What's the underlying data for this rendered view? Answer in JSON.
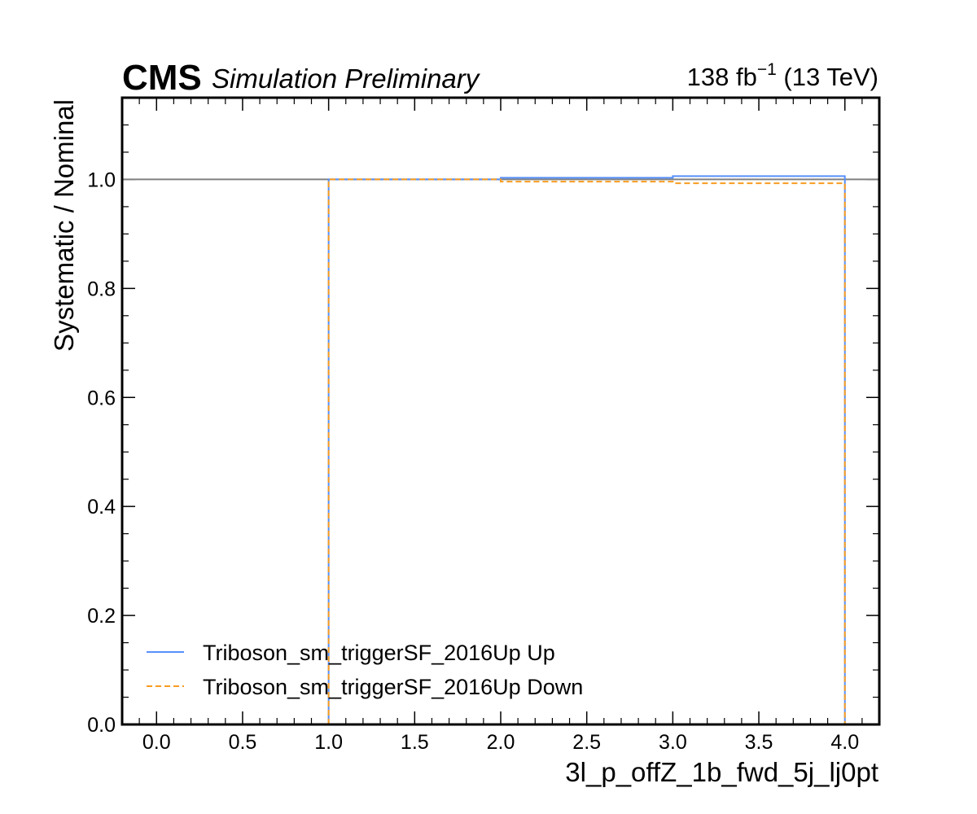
{
  "header": {
    "experiment": "CMS",
    "status": "Simulation Preliminary",
    "lumi_value": "138 fb",
    "lumi_exponent": "−1",
    "energy": " (13 TeV)"
  },
  "chart_data": {
    "type": "line",
    "drawstyle": "steps",
    "title": "",
    "xlabel": "3l_p_offZ_1b_fwd_5j_lj0pt",
    "ylabel": "Systematic / Nominal",
    "xlim": [
      -0.2,
      4.2
    ],
    "ylim": [
      0.0,
      1.15
    ],
    "x_ticks": [
      0.0,
      0.5,
      1.0,
      1.5,
      2.0,
      2.5,
      3.0,
      3.5,
      4.0
    ],
    "x_tick_labels": [
      "0.0",
      "0.5",
      "1.0",
      "1.5",
      "2.0",
      "2.5",
      "3.0",
      "3.5",
      "4.0"
    ],
    "y_ticks": [
      0.0,
      0.2,
      0.4,
      0.6,
      0.8,
      1.0
    ],
    "y_tick_labels": [
      "0.0",
      "0.2",
      "0.4",
      "0.6",
      "0.8",
      "1.0"
    ],
    "reference_line": 1.0,
    "legend_position": "lower-left",
    "bin_edges": [
      1.0,
      2.0,
      3.0,
      4.0
    ],
    "series": [
      {
        "name": "Triboson_sm_triggerSF_2016Up Up",
        "values": [
          1.0,
          1.003,
          1.006
        ],
        "color": "#5790fc",
        "linestyle": "solid"
      },
      {
        "name": "Triboson_sm_triggerSF_2016Up Down",
        "values": [
          1.0,
          0.996,
          0.993
        ],
        "color": "#f89c20",
        "linestyle": "dashed"
      }
    ],
    "reference_color": "#808080"
  }
}
